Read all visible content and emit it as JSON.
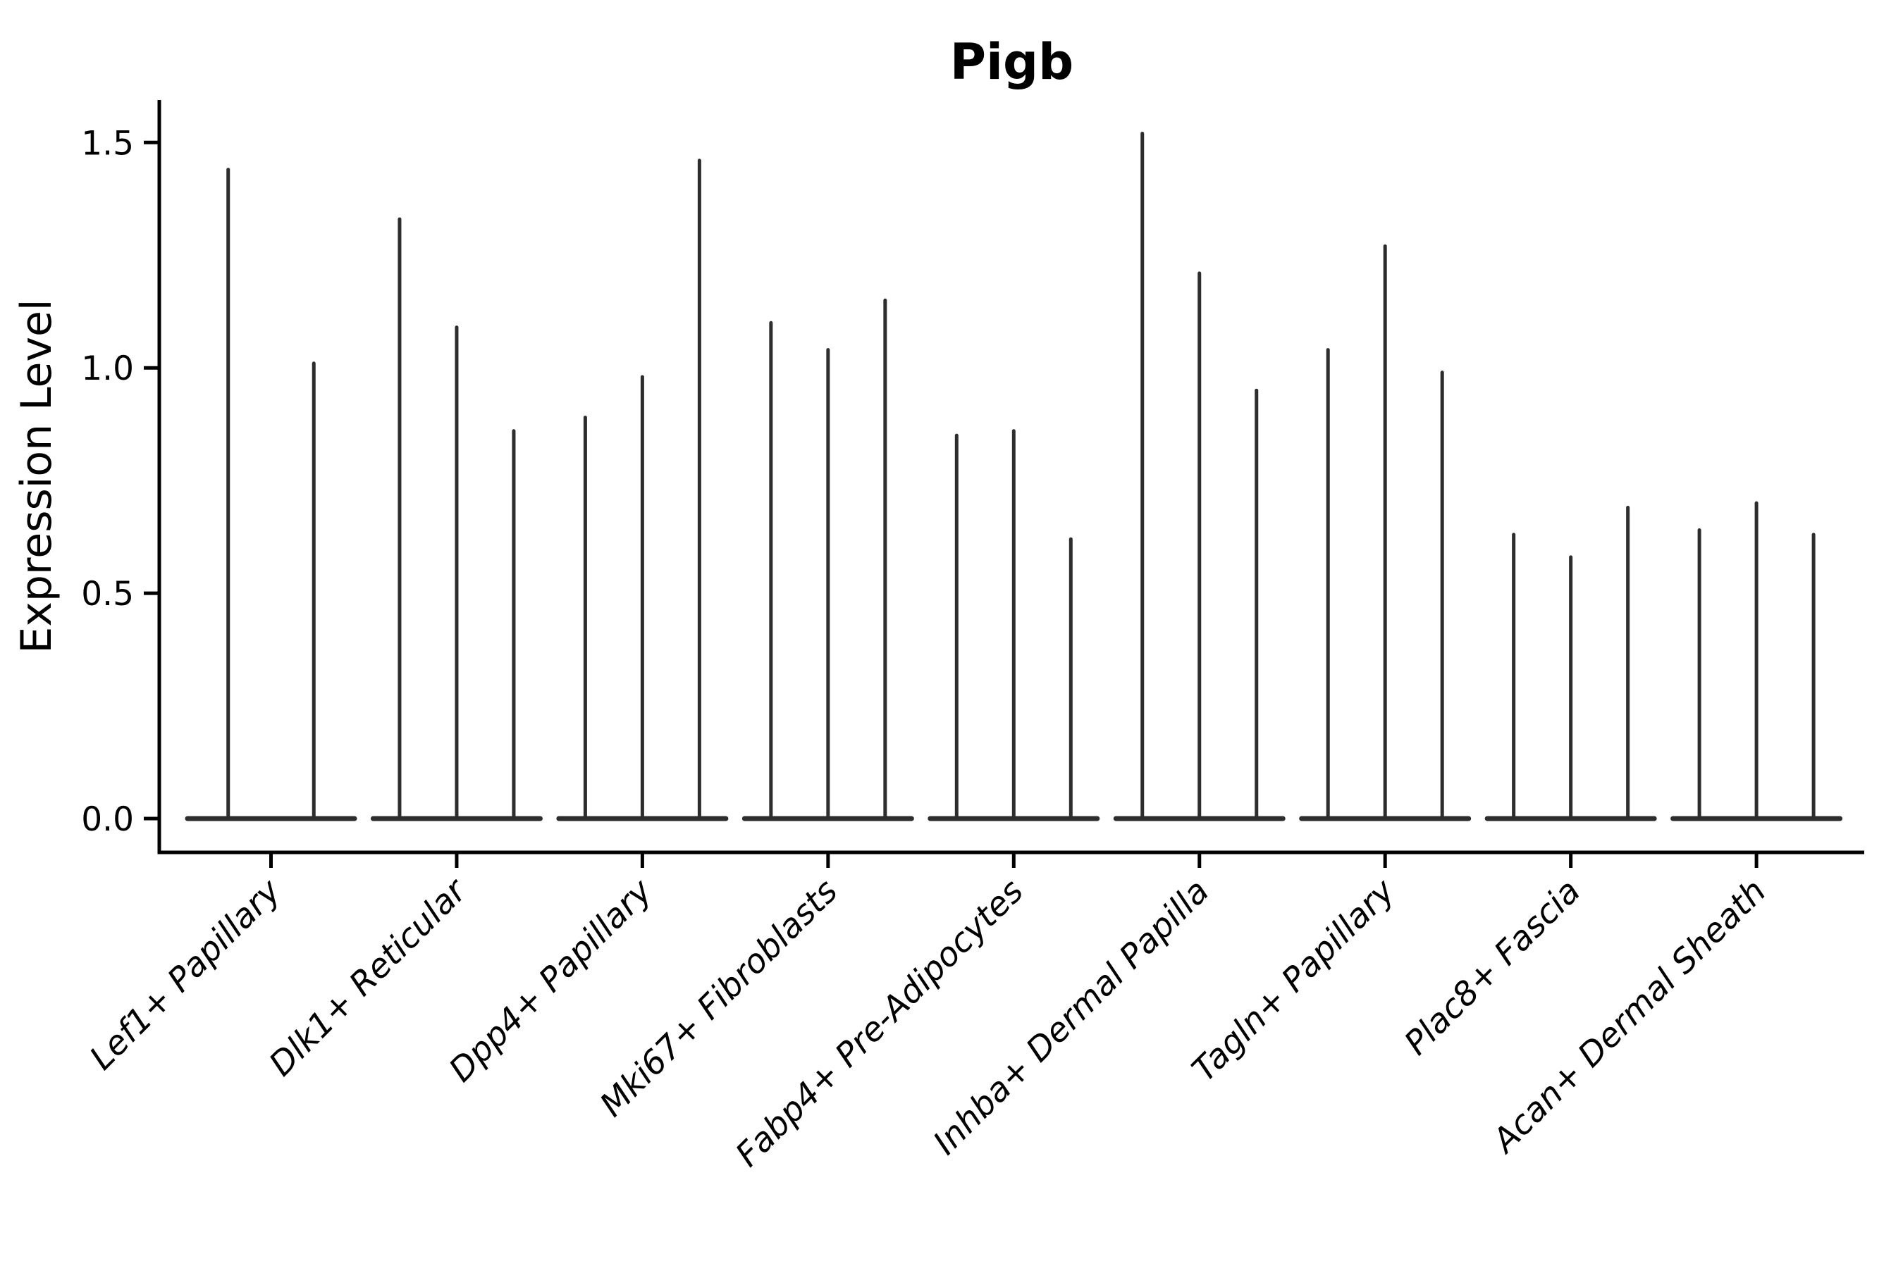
{
  "title": "Pigb",
  "axes": {
    "y_label": "Expression Level",
    "y_tick_labels": [
      "0.0",
      "0.5",
      "1.0",
      "1.5"
    ],
    "y_tick_values": [
      0.0,
      0.5,
      1.0,
      1.5
    ]
  },
  "chart_data": {
    "type": "violin",
    "title": "Pigb",
    "xlabel": "",
    "ylabel": "Expression Level",
    "ylim": [
      -0.08,
      1.59
    ],
    "y_ticks": [
      0.0,
      0.5,
      1.0,
      1.5
    ],
    "grid": false,
    "legend": "none",
    "note": "Sparse single-cell expression: each violin collapses to a flat base at 0 with a thin spike up to the maximum expression value. Categories hold 2-3 sub-violins each.",
    "categories": [
      "Lef1+ Papillary",
      "Dlk1+ Reticular",
      "Dpp4+ Papillary",
      "Mki67+ Fibroblasts",
      "Fabp4+ Pre-Adipocytes",
      "Inhba+ Dermal Papilla",
      "Tagln+ Papillary",
      "Plac8+ Fascia",
      "Acan+ Dermal Sheath"
    ],
    "violins": [
      {
        "category": "Lef1+ Papillary",
        "spike_maxima": [
          1.44,
          1.01
        ]
      },
      {
        "category": "Dlk1+ Reticular",
        "spike_maxima": [
          1.33,
          1.09,
          0.86
        ]
      },
      {
        "category": "Dpp4+ Papillary",
        "spike_maxima": [
          0.89,
          0.98,
          1.46
        ]
      },
      {
        "category": "Mki67+ Fibroblasts",
        "spike_maxima": [
          1.1,
          1.04,
          1.15
        ]
      },
      {
        "category": "Fabp4+ Pre-Adipocytes",
        "spike_maxima": [
          0.85,
          0.86,
          0.62
        ]
      },
      {
        "category": "Inhba+ Dermal Papilla",
        "spike_maxima": [
          1.52,
          1.21,
          0.95
        ]
      },
      {
        "category": "Tagln+ Papillary",
        "spike_maxima": [
          1.04,
          1.27,
          0.99
        ]
      },
      {
        "category": "Plac8+ Fascia",
        "spike_maxima": [
          0.63,
          0.58,
          0.69
        ]
      },
      {
        "category": "Acan+ Dermal Sheath",
        "spike_maxima": [
          0.64,
          0.7,
          0.63
        ]
      }
    ]
  },
  "style": {
    "background": "#ffffff",
    "violin_color": "#2d2d2d",
    "axis_color": "#000000",
    "text_color": "#000000"
  }
}
